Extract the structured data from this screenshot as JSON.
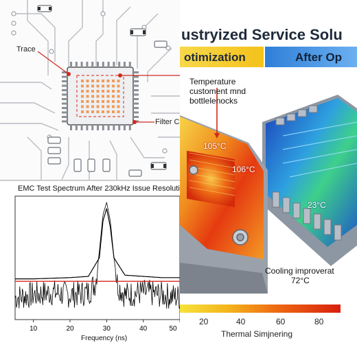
{
  "pcb_panel": {
    "trace_label": "Trace",
    "filter_label": "Filter C"
  },
  "emc_panel": {
    "title": "EMC Test Spectrum After 230kHz Issue Resolutio",
    "xlabel": "Frequency (ns)",
    "x_ticks": [
      "10",
      "20",
      "30",
      "40",
      "50"
    ]
  },
  "thermal_panel": {
    "title": "ustryized Service Solu",
    "banner_left": "otimization",
    "banner_right": "After Op",
    "callout_bottleneck": "Temperature\ncustoment mnd\nbottlelenocks",
    "hot_temp_1": "105°C",
    "hot_temp_2": "106°C",
    "cool_temp": "23°C",
    "cooling_note_1": "Cooling improverat",
    "cooling_note_2": "72°C",
    "colorbar_ticks": [
      "20",
      "40",
      "60",
      "80"
    ],
    "colorbar_label": "Thermal Simjnering",
    "colors": {
      "hot": "#e8420c",
      "warm": "#f5b21b",
      "cool": "#1e5fd6",
      "banner_yellow": "#f4c21a",
      "banner_blue": "#2f7fd8"
    }
  },
  "chart_data": {
    "type": "line",
    "title": "EMC Test Spectrum After 230kHz Issue Resolutio",
    "xlabel": "Frequency (ns)",
    "ylabel": "",
    "xlim": [
      5,
      50
    ],
    "x_ticks": [
      10,
      20,
      30,
      40,
      50
    ],
    "series": [
      {
        "values_desc": "noise floor with resonance peak",
        "x": [
          5,
          10,
          15,
          20,
          25,
          27,
          28,
          29,
          30,
          31,
          32,
          33,
          35,
          40,
          45,
          50
        ],
        "y": [
          0.18,
          0.2,
          0.22,
          0.2,
          0.22,
          0.3,
          0.55,
          0.85,
          0.95,
          0.8,
          0.5,
          0.28,
          0.2,
          0.22,
          0.2,
          0.18
        ]
      },
      {
        "values_desc": "envelope",
        "x": [
          5,
          10,
          15,
          20,
          25,
          28,
          29,
          30,
          31,
          32,
          35,
          40,
          45,
          50
        ],
        "y": [
          0.33,
          0.33,
          0.335,
          0.34,
          0.35,
          0.5,
          0.8,
          0.9,
          0.75,
          0.5,
          0.36,
          0.35,
          0.34,
          0.34
        ]
      }
    ],
    "threshold": 0.31
  }
}
